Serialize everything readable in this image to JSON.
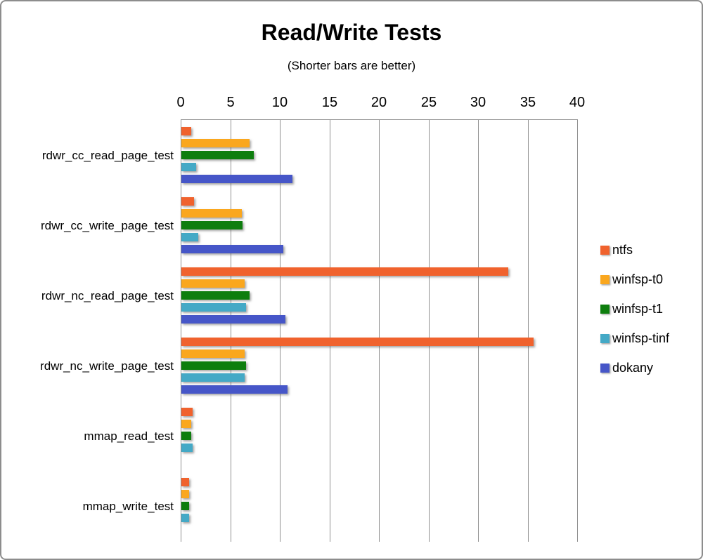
{
  "title": "Read/Write Tests",
  "subtitle": "(Shorter bars are better)",
  "chart_data": {
    "type": "bar",
    "orientation": "horizontal",
    "title": "Read/Write Tests",
    "subtitle": "(Shorter bars are better)",
    "xlabel": "",
    "ylabel": "",
    "xlim": [
      0,
      40
    ],
    "xticks": [
      0,
      5,
      10,
      15,
      20,
      25,
      30,
      35,
      40
    ],
    "grid": true,
    "legend_position": "right",
    "categories": [
      "rdwr_cc_read_page_test",
      "rdwr_cc_write_page_test",
      "rdwr_nc_read_page_test",
      "rdwr_nc_write_page_test",
      "mmap_read_test",
      "mmap_write_test"
    ],
    "series": [
      {
        "name": "ntfs",
        "color": "#F0622D",
        "values": [
          1.0,
          1.3,
          33.0,
          35.5,
          1.1,
          0.8
        ]
      },
      {
        "name": "winfsp-t0",
        "color": "#FAA71E",
        "values": [
          6.9,
          6.1,
          6.4,
          6.4,
          1.0,
          0.8
        ]
      },
      {
        "name": "winfsp-t1",
        "color": "#0E7E0E",
        "values": [
          7.3,
          6.2,
          6.9,
          6.5,
          1.0,
          0.8
        ]
      },
      {
        "name": "winfsp-tinf",
        "color": "#44A9C6",
        "values": [
          1.5,
          1.7,
          6.5,
          6.4,
          1.1,
          0.8
        ]
      },
      {
        "name": "dokany",
        "color": "#4656C8",
        "values": [
          11.2,
          10.3,
          10.5,
          10.7,
          0,
          0
        ]
      }
    ]
  },
  "colors": {
    "gridline": "#909090",
    "frame_border": "#8d8d8d",
    "text": "#000000",
    "background": "#ffffff"
  }
}
